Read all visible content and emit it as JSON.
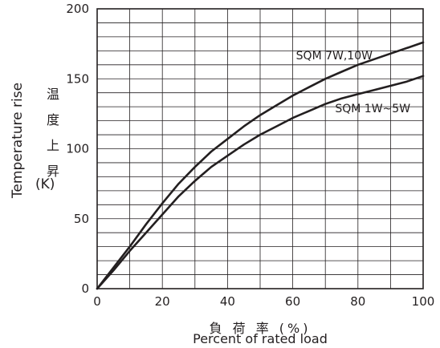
{
  "chart_data": {
    "type": "line",
    "title": "",
    "xlabel_jp": "負 荷 率 (%)",
    "xlabel": "Percent of rated load",
    "ylabel": "Temperature rise",
    "ylabel_jp": "温度上昇",
    "yunit": "(K)",
    "xlim": [
      0,
      100
    ],
    "ylim": [
      0,
      200
    ],
    "xticks": [
      0,
      20,
      40,
      60,
      80,
      100
    ],
    "yticks": [
      0,
      50,
      100,
      150,
      200
    ],
    "grid": true,
    "series": [
      {
        "name": "SQM 7W,10W",
        "x": [
          0,
          5,
          10,
          15,
          20,
          25,
          30,
          35,
          40,
          45,
          50,
          55,
          60,
          65,
          70,
          75,
          80,
          85,
          90,
          95,
          100
        ],
        "values": [
          0,
          15,
          30,
          46,
          61,
          75,
          87,
          98,
          107,
          116,
          124,
          131,
          138,
          144,
          150,
          155,
          160,
          164,
          168,
          172,
          176
        ]
      },
      {
        "name": "SQM 1W~5W",
        "x": [
          0,
          5,
          10,
          15,
          20,
          25,
          30,
          35,
          40,
          45,
          50,
          55,
          60,
          65,
          70,
          75,
          80,
          85,
          90,
          95,
          100
        ],
        "values": [
          0,
          13,
          27,
          40,
          53,
          66,
          77,
          87,
          95,
          103,
          110,
          116,
          122,
          127,
          132,
          136,
          139,
          142,
          145,
          148,
          152
        ]
      }
    ]
  }
}
